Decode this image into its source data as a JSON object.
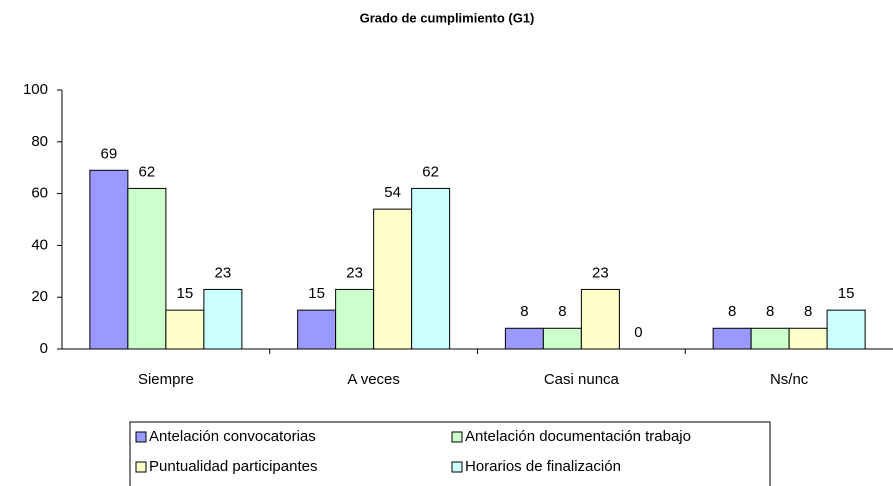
{
  "chart_data": {
    "type": "bar",
    "title": "Grado de cumplimiento (G1)",
    "categories": [
      "Siempre",
      "A veces",
      "Casi nunca",
      "Ns/nc"
    ],
    "series": [
      {
        "name": "Antelación convocatorias",
        "color": "#9999ff",
        "values": [
          69,
          15,
          8,
          8
        ]
      },
      {
        "name": "Antelación documentación trabajo",
        "color": "#ccffcc",
        "values": [
          62,
          23,
          8,
          8
        ]
      },
      {
        "name": "Puntualidad participantes",
        "color": "#ffffcc",
        "values": [
          15,
          54,
          23,
          8
        ]
      },
      {
        "name": "Horarios de finalización",
        "color": "#ccffff",
        "values": [
          23,
          62,
          0,
          15
        ]
      }
    ],
    "ylim": [
      0,
      100
    ],
    "yticks": [
      0,
      20,
      40,
      60,
      80,
      100
    ],
    "grid": false,
    "legend": "bottom"
  }
}
